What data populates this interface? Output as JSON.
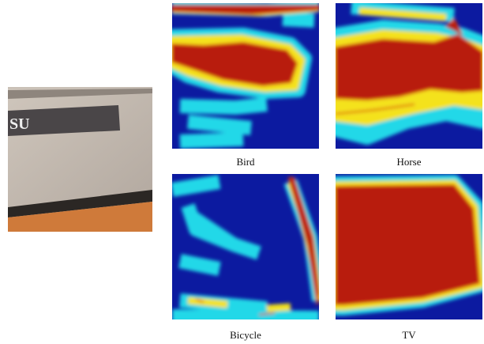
{
  "photo": {
    "visible_text": "SU"
  },
  "panels": [
    {
      "label": "Bird"
    },
    {
      "label": "Horse"
    },
    {
      "label": "Bicycle"
    },
    {
      "label": "TV"
    }
  ]
}
